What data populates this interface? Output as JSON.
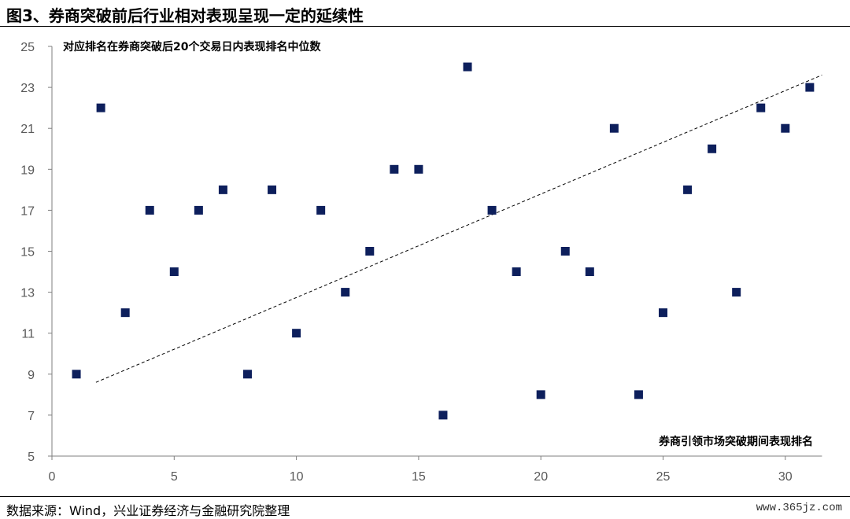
{
  "figure_title": "图3、券商突破前后行业相对表现呈现一定的延续性",
  "source": "数据来源：Wind，兴业证券经济与金融研究院整理",
  "watermark": "www.365jz.com",
  "colors": {
    "marker": "#0d1f5c",
    "axis": "#7f7f7f",
    "tick_text": "#595959",
    "trendline": "#000000"
  },
  "chart_data": {
    "type": "scatter",
    "title": "",
    "ylabel": "对应排名在券商突破后20个交易日内表现排名中位数",
    "xlabel": "券商引领市场突破期间表现排名",
    "xlim": [
      0,
      31.5
    ],
    "ylim": [
      5,
      25
    ],
    "x_ticks": [
      0,
      5,
      10,
      15,
      20,
      25,
      30
    ],
    "y_ticks": [
      5,
      7,
      9,
      11,
      13,
      15,
      17,
      19,
      21,
      23,
      25
    ],
    "grid": false,
    "legend": "none",
    "marker": "square",
    "points": [
      {
        "x": 1,
        "y": 9
      },
      {
        "x": 2,
        "y": 22
      },
      {
        "x": 3,
        "y": 12
      },
      {
        "x": 4,
        "y": 17
      },
      {
        "x": 5,
        "y": 14
      },
      {
        "x": 6,
        "y": 17
      },
      {
        "x": 7,
        "y": 18
      },
      {
        "x": 8,
        "y": 9
      },
      {
        "x": 9,
        "y": 18
      },
      {
        "x": 10,
        "y": 11
      },
      {
        "x": 11,
        "y": 17
      },
      {
        "x": 12,
        "y": 13
      },
      {
        "x": 13,
        "y": 15
      },
      {
        "x": 14,
        "y": 19
      },
      {
        "x": 15,
        "y": 19
      },
      {
        "x": 16,
        "y": 7
      },
      {
        "x": 17,
        "y": 24
      },
      {
        "x": 18,
        "y": 17
      },
      {
        "x": 19,
        "y": 14
      },
      {
        "x": 20,
        "y": 8
      },
      {
        "x": 21,
        "y": 15
      },
      {
        "x": 22,
        "y": 14
      },
      {
        "x": 23,
        "y": 21
      },
      {
        "x": 24,
        "y": 8
      },
      {
        "x": 25,
        "y": 12
      },
      {
        "x": 26,
        "y": 18
      },
      {
        "x": 27,
        "y": 20
      },
      {
        "x": 28,
        "y": 13
      },
      {
        "x": 29,
        "y": 22
      },
      {
        "x": 30,
        "y": 21
      },
      {
        "x": 31,
        "y": 23
      }
    ],
    "trendline": {
      "type": "linear",
      "style": "dashed",
      "start": {
        "x": 1.8,
        "y": 8.6
      },
      "end": {
        "x": 31.5,
        "y": 23.6
      }
    }
  }
}
